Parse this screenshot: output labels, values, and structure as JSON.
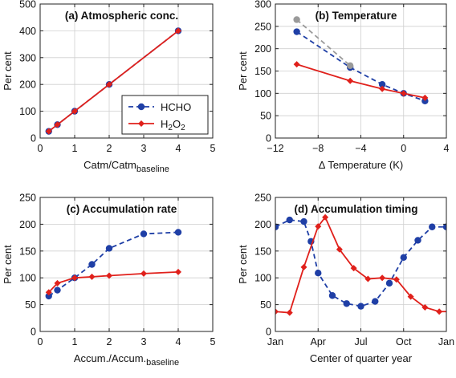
{
  "chart_data": [
    {
      "type": "line",
      "title": "(a) Atmospheric conc.",
      "xlabel": "Catm/Catm",
      "xlabel_sub": "baseline",
      "ylabel": "Per cent",
      "xlim": [
        0,
        5
      ],
      "ylim": [
        0,
        500
      ],
      "xticks": [
        0,
        1,
        2,
        3,
        4,
        5
      ],
      "yticks": [
        0,
        100,
        200,
        300,
        400,
        500
      ],
      "grid": true,
      "legend": {
        "position": "lower-right",
        "entries": [
          {
            "label": "HCHO"
          },
          {
            "label": "H",
            "sub1": "2",
            "mid": "O",
            "sub2": "2"
          }
        ]
      },
      "series": [
        {
          "name": "HCHO",
          "color": "#1f3fa6",
          "style": "dashed",
          "marker": "circle",
          "x": [
            0.25,
            0.5,
            1,
            2,
            4
          ],
          "y": [
            25,
            50,
            100,
            200,
            400
          ]
        },
        {
          "name": "H2O2",
          "color": "#e0201b",
          "style": "solid",
          "marker": "diamond",
          "x": [
            0.25,
            0.5,
            1,
            2,
            4
          ],
          "y": [
            25,
            50,
            100,
            200,
            400
          ]
        }
      ]
    },
    {
      "type": "line",
      "title": "(b) Temperature",
      "xlabel": "Δ Temperature (K)",
      "ylabel": "Per cent",
      "xlim": [
        -12,
        4
      ],
      "ylim": [
        0,
        300
      ],
      "xticks": [
        -12,
        -8,
        -4,
        0,
        4
      ],
      "xticklabels": [
        "−12",
        "−8",
        "−4",
        "0",
        "4"
      ],
      "yticks": [
        0,
        50,
        100,
        150,
        200,
        250,
        300
      ],
      "grid": true,
      "series": [
        {
          "name": "HCHO",
          "color": "#1f3fa6",
          "style": "dashed",
          "marker": "circle",
          "x": [
            -10,
            -5,
            -2,
            0,
            2
          ],
          "y": [
            238,
            158,
            120,
            100,
            83
          ]
        },
        {
          "name": "HCHO (gray)",
          "color": "#9a9a9a",
          "style": "dashed",
          "marker": "circle",
          "x": [
            -10,
            -5
          ],
          "y": [
            265,
            162
          ]
        },
        {
          "name": "H2O2",
          "color": "#e0201b",
          "style": "solid",
          "marker": "diamond",
          "x": [
            -10,
            -5,
            -2,
            0,
            2
          ],
          "y": [
            165,
            128,
            110,
            100,
            90
          ]
        }
      ]
    },
    {
      "type": "line",
      "title": "(c) Accumulation rate",
      "xlabel": "Accum./Accum.",
      "xlabel_sub": "baseline",
      "ylabel": "Per cent",
      "xlim": [
        0,
        5
      ],
      "ylim": [
        0,
        250
      ],
      "xticks": [
        0,
        1,
        2,
        3,
        4,
        5
      ],
      "yticks": [
        0,
        50,
        100,
        150,
        200,
        250
      ],
      "grid": true,
      "series": [
        {
          "name": "HCHO",
          "color": "#1f3fa6",
          "style": "dashed",
          "marker": "circle",
          "x": [
            0.25,
            0.5,
            1,
            1.5,
            2,
            3,
            4
          ],
          "y": [
            66,
            77,
            100,
            125,
            155,
            182,
            185
          ]
        },
        {
          "name": "H2O2",
          "color": "#e0201b",
          "style": "solid",
          "marker": "diamond",
          "x": [
            0.25,
            0.5,
            1,
            1.5,
            2,
            3,
            4
          ],
          "y": [
            73,
            90,
            100,
            102,
            104,
            108,
            111
          ]
        }
      ]
    },
    {
      "type": "line",
      "title": "(d) Accumulation timing",
      "xlabel": "Center of quarter year",
      "ylabel": "Per cent",
      "xlim": [
        0,
        12
      ],
      "ylim": [
        0,
        250
      ],
      "xticks": [
        0,
        3,
        6,
        9,
        12
      ],
      "xticklabels": [
        "Jan",
        "Apr",
        "Jul",
        "Oct",
        "Jan"
      ],
      "yticks": [
        0,
        50,
        100,
        150,
        200,
        250
      ],
      "grid": true,
      "series": [
        {
          "name": "HCHO",
          "color": "#1f3fa6",
          "style": "dashed",
          "marker": "circle",
          "x": [
            0,
            1,
            2,
            2.5,
            3,
            4,
            5,
            6,
            7,
            8,
            9,
            10,
            11,
            12
          ],
          "y": [
            195,
            208,
            205,
            168,
            109,
            67,
            52,
            47,
            56,
            90,
            138,
            170,
            195,
            195
          ]
        },
        {
          "name": "H2O2",
          "color": "#e0201b",
          "style": "solid",
          "marker": "diamond",
          "x": [
            0,
            1,
            2,
            3,
            3.5,
            4.5,
            5.5,
            6.5,
            7.5,
            8.5,
            9.5,
            10.5,
            11.5,
            12.5
          ],
          "y": [
            37,
            35,
            120,
            196,
            213,
            153,
            118,
            98,
            100,
            97,
            65,
            45,
            37,
            37
          ]
        }
      ]
    }
  ]
}
